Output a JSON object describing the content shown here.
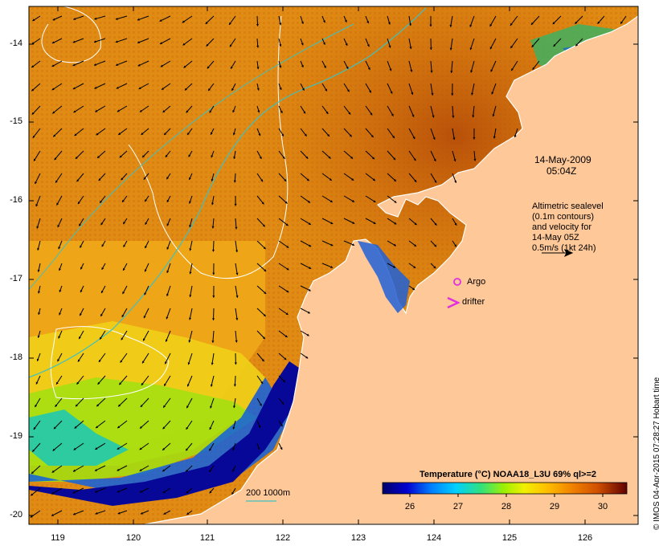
{
  "map": {
    "date_label": "14-May-2009",
    "time_label": "05:04Z",
    "info_lines": [
      "Altimetric sealevel",
      "(0.1m contours)",
      "and velocity for",
      "14-May 05Z",
      "0.5m/s (1kt 24h)"
    ],
    "argo_label": "Argo",
    "drifter_label": "drifter",
    "depth_label": "200  1000m",
    "credit": "© IMOS 04-Apr-2015 07:28:27 Hobart time",
    "y_ticks": [
      "-14",
      "-15",
      "-16",
      "-17",
      "-18",
      "-19",
      "-20"
    ],
    "x_ticks": [
      "119",
      "120",
      "121",
      "122",
      "123",
      "124",
      "125",
      "126"
    ]
  },
  "colorbar": {
    "title": "Temperature (°C) NOAA18_L3U 69% ql>=2",
    "ticks": [
      "26",
      "27",
      "28",
      "29",
      "30"
    ],
    "colors": [
      "#00006a",
      "#0000d0",
      "#0080ff",
      "#00d0ff",
      "#30e080",
      "#a0f000",
      "#f0f000",
      "#ffc000",
      "#f08000",
      "#d05000",
      "#a02000",
      "#600000"
    ]
  },
  "colors": {
    "land": "#fec898",
    "coast": "#ffffff",
    "contour_sealevel": "#ffffff",
    "isobath": "#40c0c0",
    "argo": "#e030e0",
    "arrow": "#000000"
  }
}
